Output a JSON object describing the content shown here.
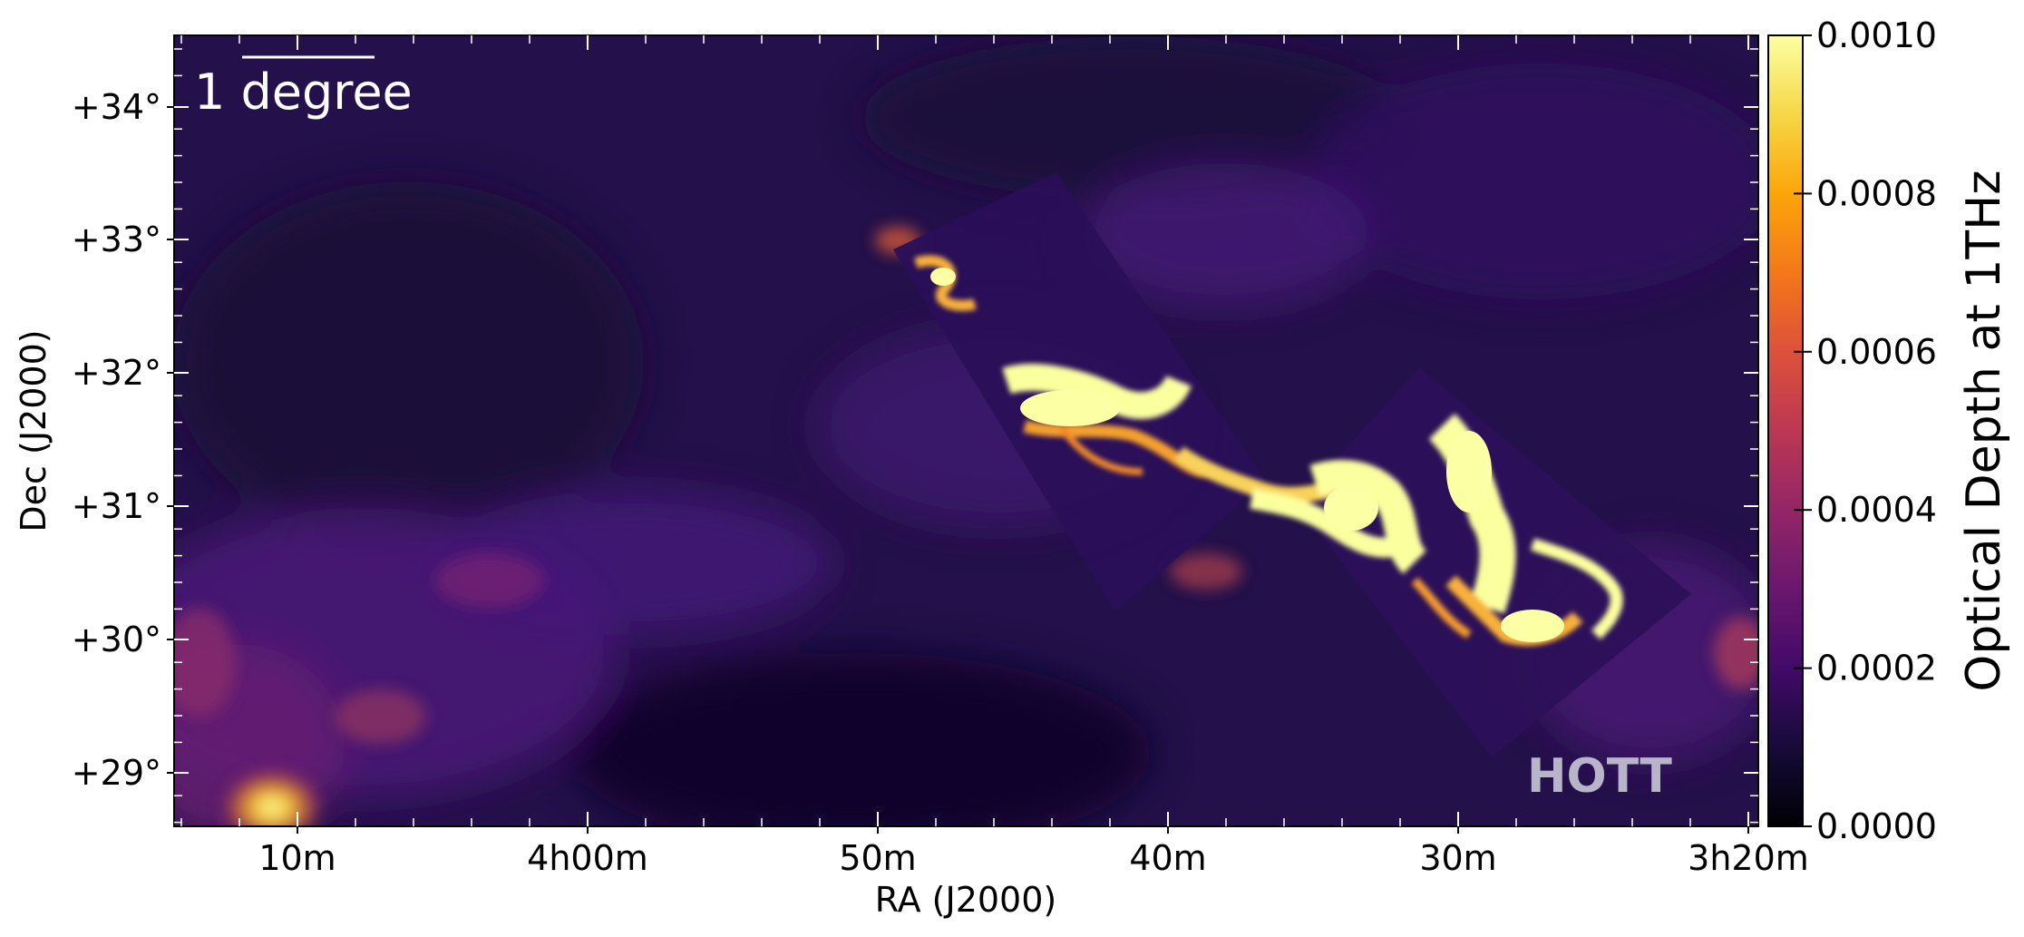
{
  "chart_data": {
    "type": "heatmap",
    "title": "",
    "xlabel": "RA (J2000)",
    "ylabel": "Dec (J2000)",
    "x_ticks": [
      "10m",
      "4h00m",
      "50m",
      "40m",
      "30m",
      "3h20m"
    ],
    "y_ticks": [
      "+34°",
      "+33°",
      "+32°",
      "+31°",
      "+30°",
      "+29°"
    ],
    "colorbar": {
      "label": "Optical Depth at 1THz",
      "ticks": [
        "0.0010",
        "0.0008",
        "0.0006",
        "0.0004",
        "0.0002",
        "0.0000"
      ],
      "range": [
        0.0,
        0.001
      ],
      "colormap": "inferno"
    },
    "annotations": {
      "scale_bar": "1 degree",
      "watermark": "HOTT"
    },
    "colors": {
      "background_dark": "#1a0b35",
      "mid_purple": "#4b1a7a",
      "orange": "#f28a1f",
      "bright_yellow": "#fcffa4"
    }
  }
}
